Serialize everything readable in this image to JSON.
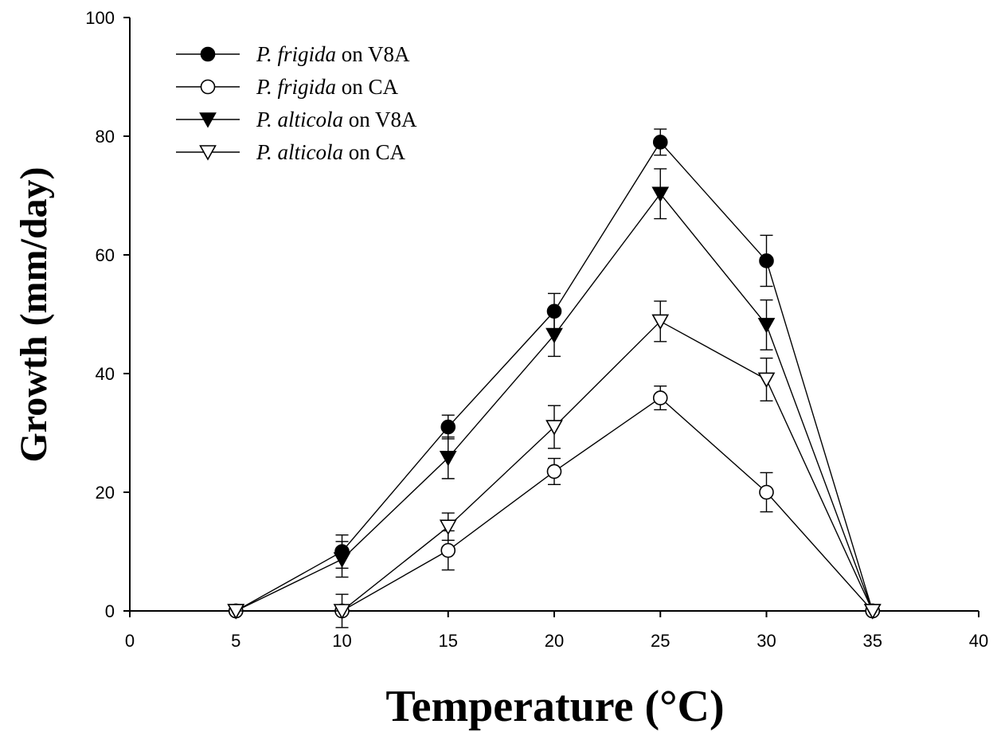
{
  "chart_data": {
    "type": "line",
    "xlabel": "Temperature (°C)",
    "ylabel": "Growth (mm/day)",
    "xlim": [
      0,
      40
    ],
    "ylim": [
      0,
      100
    ],
    "xticks": [
      0,
      5,
      10,
      15,
      20,
      25,
      30,
      35,
      40
    ],
    "yticks": [
      0,
      20,
      40,
      60,
      80,
      100
    ],
    "grid": false,
    "legend_position": "top-left",
    "series": [
      {
        "name_italic": "P. frigida",
        "name_rest": " on V8A",
        "marker": "filled-circle",
        "x": [
          5,
          10,
          15,
          20,
          25,
          30,
          35
        ],
        "y": [
          0,
          10,
          31,
          50.5,
          79,
          59,
          0
        ],
        "err": [
          0,
          2.8,
          2,
          3,
          2.2,
          4.3,
          0
        ]
      },
      {
        "name_italic": "P. frigida",
        "name_rest": " on CA",
        "marker": "open-circle",
        "x": [
          5,
          10,
          15,
          20,
          25,
          30,
          35
        ],
        "y": [
          0,
          0,
          10.2,
          23.5,
          35.9,
          20,
          0
        ],
        "err": [
          0,
          0,
          3.3,
          2.2,
          2,
          3.3,
          0
        ]
      },
      {
        "name_italic": "P. alticola",
        "name_rest": " on V8A",
        "marker": "filled-triangle-down",
        "x": [
          5,
          10,
          15,
          20,
          25,
          30,
          35
        ],
        "y": [
          0,
          8.7,
          25.8,
          46.5,
          70.3,
          48.2,
          0
        ],
        "err": [
          0,
          3,
          3.5,
          3.6,
          4.2,
          4.2,
          0
        ]
      },
      {
        "name_italic": "P. alticola",
        "name_rest": " on CA",
        "marker": "open-triangle-down",
        "x": [
          5,
          10,
          15,
          20,
          25,
          30,
          35
        ],
        "y": [
          0,
          0,
          14.2,
          31,
          48.8,
          39,
          0
        ],
        "err": [
          0,
          2.8,
          2.3,
          3.6,
          3.4,
          3.6,
          0
        ]
      }
    ]
  }
}
